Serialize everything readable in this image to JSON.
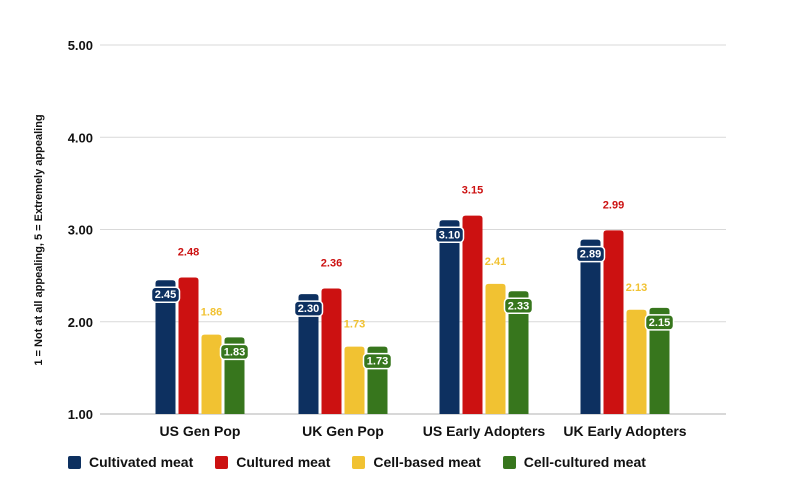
{
  "chart_data": {
    "type": "bar",
    "title": "",
    "xlabel": "",
    "ylabel": "1 = Not at all appealing, 5 = Extremely appealing",
    "ylim": [
      1,
      5
    ],
    "yticks": [
      "1.00",
      "2.00",
      "3.00",
      "4.00",
      "5.00"
    ],
    "grid": true,
    "legend_position": "bottom",
    "categories": [
      "US Gen Pop",
      "UK Gen Pop",
      "US Early Adopters",
      "UK Early Adopters"
    ],
    "series": [
      {
        "name": "Cultivated meat",
        "color": "#0d3060",
        "values": [
          2.45,
          2.3,
          3.1,
          2.89
        ],
        "labels": [
          "2.45",
          "2.30",
          "3.10",
          "2.89"
        ]
      },
      {
        "name": "Cultured meat",
        "color": "#cc1111",
        "values": [
          2.48,
          2.36,
          3.15,
          2.99
        ],
        "labels": [
          "2.48",
          "2.36",
          "3.15",
          "2.99"
        ]
      },
      {
        "name": "Cell-based meat",
        "color": "#f1c232",
        "values": [
          1.86,
          1.73,
          2.41,
          2.13
        ],
        "labels": [
          "1.86",
          "1.73",
          "2.41",
          "2.13"
        ]
      },
      {
        "name": "Cell-cultured meat",
        "color": "#37761d",
        "values": [
          1.83,
          1.73,
          2.33,
          2.15
        ],
        "labels": [
          "1.83",
          "1.73",
          "2.33",
          "2.15"
        ]
      }
    ]
  }
}
